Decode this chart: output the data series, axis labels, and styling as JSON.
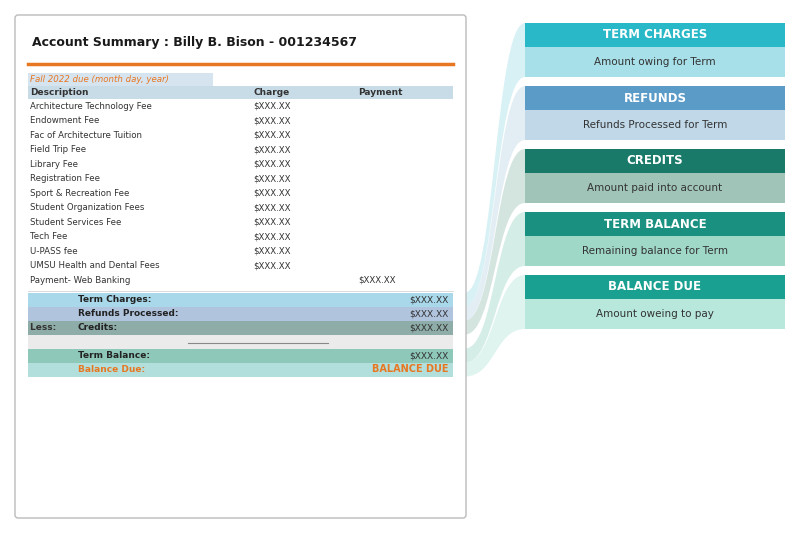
{
  "title": "Account Summary : Billy B. Bison - 001234567",
  "orange_line_color": "#E87722",
  "fall_term_label": "Fall 2022 due (month day, year)",
  "fall_term_label_color": "#E87722",
  "fall_term_bg": "#D6E4F0",
  "header_bg": "#C8DCE8",
  "header_text_color": "#333333",
  "col_headers": [
    "Description",
    "Charge",
    "Payment"
  ],
  "line_items": [
    {
      "desc": "Architecture Technology Fee",
      "charge": "$XXX.XX",
      "payment": ""
    },
    {
      "desc": "Endowment Fee",
      "charge": "$XXX.XX",
      "payment": ""
    },
    {
      "desc": "Fac of Architecture Tuition",
      "charge": "$XXX.XX",
      "payment": ""
    },
    {
      "desc": "Field Trip Fee",
      "charge": "$XXX.XX",
      "payment": ""
    },
    {
      "desc": "Library Fee",
      "charge": "$XXX.XX",
      "payment": ""
    },
    {
      "desc": "Registration Fee",
      "charge": "$XXX.XX",
      "payment": ""
    },
    {
      "desc": "Sport & Recreation Fee",
      "charge": "$XXX.XX",
      "payment": ""
    },
    {
      "desc": "Student Organization Fees",
      "charge": "$XXX.XX",
      "payment": ""
    },
    {
      "desc": "Student Services Fee",
      "charge": "$XXX.XX",
      "payment": ""
    },
    {
      "desc": "Tech Fee",
      "charge": "$XXX.XX",
      "payment": ""
    },
    {
      "desc": "U-PASS fee",
      "charge": "$XXX.XX",
      "payment": ""
    },
    {
      "desc": "UMSU Health and Dental Fees",
      "charge": "$XXX.XX",
      "payment": ""
    },
    {
      "desc": "Payment- Web Banking",
      "charge": "",
      "payment": "$XXX.XX"
    }
  ],
  "summary_rows": [
    {
      "label": "Term Charges:",
      "value": "$XXX.XX",
      "bg": "#A8D8EA",
      "prefix": ""
    },
    {
      "label": "Refunds Processed:",
      "value": "$XXX.XX",
      "bg": "#B0C4DE",
      "prefix": ""
    },
    {
      "label": "Credits:",
      "value": "$XXX.XX",
      "bg": "#8FADA8",
      "prefix": "Less:  "
    }
  ],
  "term_balance_row": {
    "label": "Term Balance:",
    "value": "$XXX.XX",
    "bg": "#8EC8B8"
  },
  "balance_due_row": {
    "label": "Balance Due:",
    "value": "BALANCE DUE",
    "bg": "#B2DFDB",
    "color": "#E87722"
  },
  "doc_bg": "#FFFFFF",
  "doc_border": "#BBBBBB",
  "right_panels": [
    {
      "title": "TERM CHARGES",
      "subtitle": "Amount owing for Term",
      "title_bg": "#29B8C8",
      "subtitle_bg": "#A8E0EA",
      "title_color": "#FFFFFF",
      "subtitle_color": "#333333"
    },
    {
      "title": "REFUNDS",
      "subtitle": "Refunds Processed for Term",
      "title_bg": "#5B9BC8",
      "subtitle_bg": "#C0D8E8",
      "title_color": "#FFFFFF",
      "subtitle_color": "#333333"
    },
    {
      "title": "CREDITS",
      "subtitle": "Amount paid into account",
      "title_bg": "#1A7A6A",
      "subtitle_bg": "#A0C4B8",
      "title_color": "#FFFFFF",
      "subtitle_color": "#333333"
    },
    {
      "title": "TERM BALANCE",
      "subtitle": "Remaining balance for Term",
      "title_bg": "#1A9080",
      "subtitle_bg": "#A0D8C8",
      "title_color": "#FFFFFF",
      "subtitle_color": "#333333"
    },
    {
      "title": "BALANCE DUE",
      "subtitle": "Amount oweing to pay",
      "title_bg": "#1AA090",
      "subtitle_bg": "#B8E8DC",
      "title_color": "#FFFFFF",
      "subtitle_color": "#333333"
    }
  ],
  "connector_colors": [
    "#A8E0EA",
    "#C0D8E8",
    "#A0C4B8",
    "#A0D8C8",
    "#B8E8DC"
  ],
  "fig_bg": "#FFFFFF"
}
